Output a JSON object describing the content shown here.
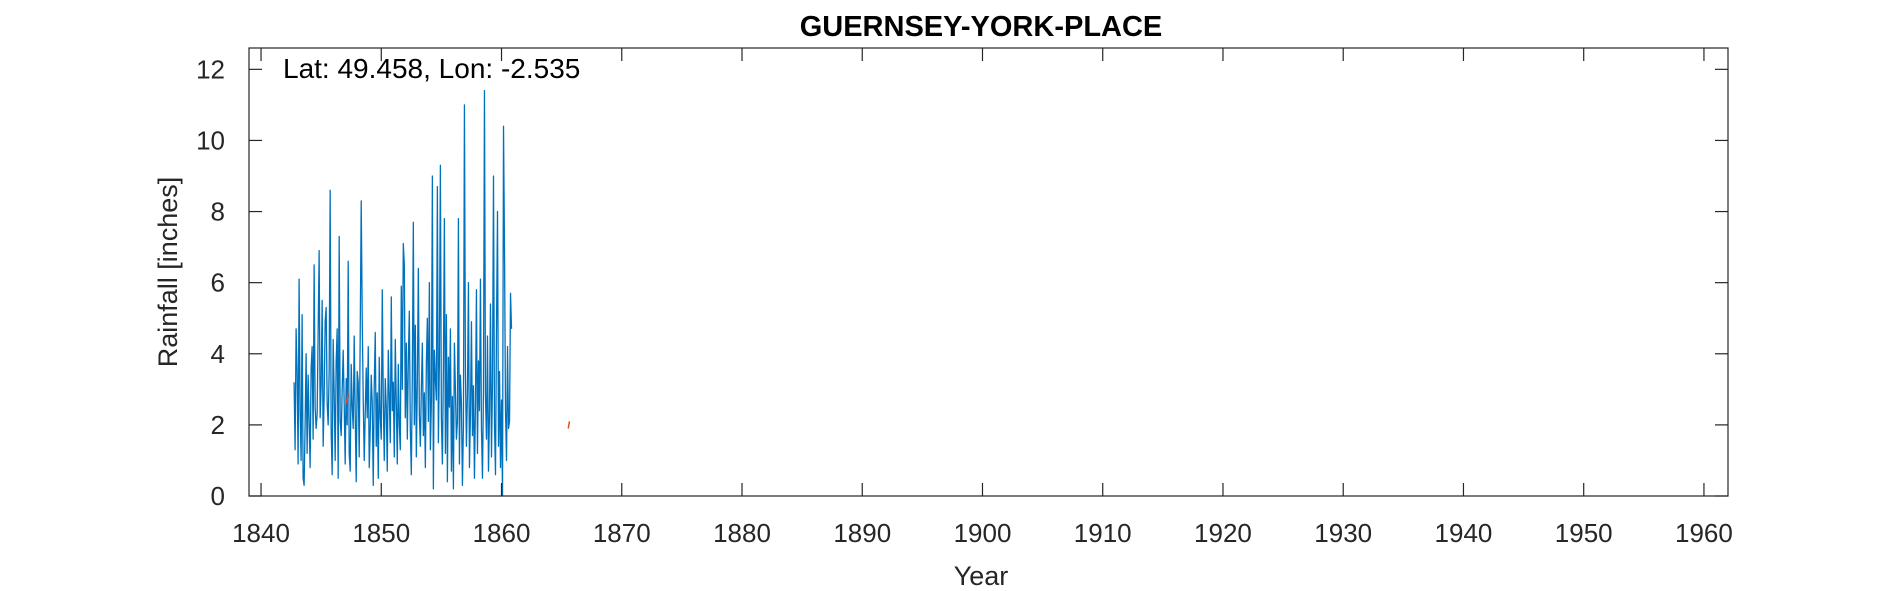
{
  "chart_data": {
    "type": "line",
    "title": "GUERNSEY-YORK-PLACE",
    "xlabel": "Year",
    "ylabel": "Rainfall [inches]",
    "annotation": "Lat: 49.458, Lon: -2.535",
    "xlim": [
      1839,
      1962
    ],
    "ylim": [
      0,
      12.6
    ],
    "xticks": [
      1840,
      1850,
      1860,
      1870,
      1880,
      1890,
      1900,
      1910,
      1920,
      1930,
      1940,
      1950,
      1960
    ],
    "yticks": [
      0,
      2,
      4,
      6,
      8,
      10,
      12
    ],
    "grid": false,
    "series": [
      {
        "color": "#0072bd",
        "x_start": 1842.75,
        "x_step": 0.08333,
        "values": [
          3.2,
          1.3,
          4.7,
          3.5,
          0.9,
          6.1,
          2.4,
          1.0,
          5.1,
          0.5,
          0.3,
          2.0,
          4.0,
          1.2,
          3.4,
          2.1,
          0.8,
          3.6,
          4.2,
          1.6,
          6.5,
          2.5,
          1.9,
          2.3,
          4.6,
          6.9,
          2.2,
          3.1,
          5.5,
          1.4,
          2.8,
          4.9,
          5.3,
          2.6,
          2.0,
          3.5,
          8.6,
          1.8,
          0.6,
          4.4,
          2.9,
          1.0,
          3.8,
          4.7,
          0.5,
          7.3,
          2.1,
          1.7,
          3.0,
          4.1,
          2.6,
          0.9,
          3.3,
          2.0,
          6.6,
          1.2,
          0.7,
          3.7,
          2.5,
          1.9,
          4.5,
          2.3,
          0.4,
          3.5,
          3.2,
          1.1,
          4.6,
          8.3,
          5.0,
          2.7,
          1.0,
          2.3,
          3.6,
          2.2,
          4.2,
          0.8,
          1.9,
          3.4,
          2.6,
          0.3,
          3.1,
          4.6,
          1.4,
          2.9,
          0.5,
          3.9,
          2.2,
          1.6,
          5.8,
          2.7,
          1.0,
          3.3,
          2.5,
          0.7,
          4.1,
          2.8,
          1.5,
          5.6,
          2.4,
          3.2,
          1.1,
          4.4,
          2.6,
          0.9,
          3.7,
          2.0,
          1.3,
          5.9,
          3.0,
          7.1,
          6.5,
          2.2,
          4.3,
          1.6,
          3.8,
          5.2,
          1.9,
          0.6,
          3.4,
          7.7,
          2.0,
          4.8,
          1.1,
          3.2,
          6.4,
          2.3,
          1.4,
          3.0,
          4.3,
          1.7,
          2.9,
          0.8,
          3.7,
          5.0,
          2.1,
          6.0,
          1.3,
          2.6,
          9.0,
          0.2,
          4.1,
          3.3,
          2.7,
          8.7,
          1.5,
          3.8,
          9.3,
          2.2,
          0.9,
          3.6,
          7.8,
          1.2,
          5.1,
          0.4,
          3.9,
          2.5,
          4.7,
          0.7,
          2.8,
          0.2,
          4.3,
          3.0,
          1.6,
          2.1,
          7.8,
          0.9,
          3.4,
          2.6,
          0.3,
          2.0,
          11.0,
          3.5,
          1.4,
          2.9,
          6.0,
          0.8,
          2.3,
          4.9,
          1.7,
          3.1,
          0.5,
          2.6,
          5.8,
          1.2,
          3.8,
          2.4,
          6.1,
          1.9,
          0.5,
          3.0,
          11.4,
          2.8,
          1.6,
          4.5,
          0.7,
          2.3,
          5.4,
          1.1,
          3.2,
          9.0,
          2.0,
          0.6,
          4.7,
          8.0,
          1.4,
          3.5,
          0.8,
          2.7,
          0.0,
          10.4,
          6.9,
          2.4,
          1.0,
          4.2,
          1.9,
          2.1,
          5.7,
          4.7
        ]
      },
      {
        "color": "#d95319",
        "segments": [
          {
            "x": [
              1847.1,
              1847.25
            ],
            "y": [
              2.6,
              2.9
            ]
          },
          {
            "x": [
              1865.55,
              1865.65
            ],
            "y": [
              1.9,
              2.1
            ]
          }
        ]
      }
    ]
  }
}
